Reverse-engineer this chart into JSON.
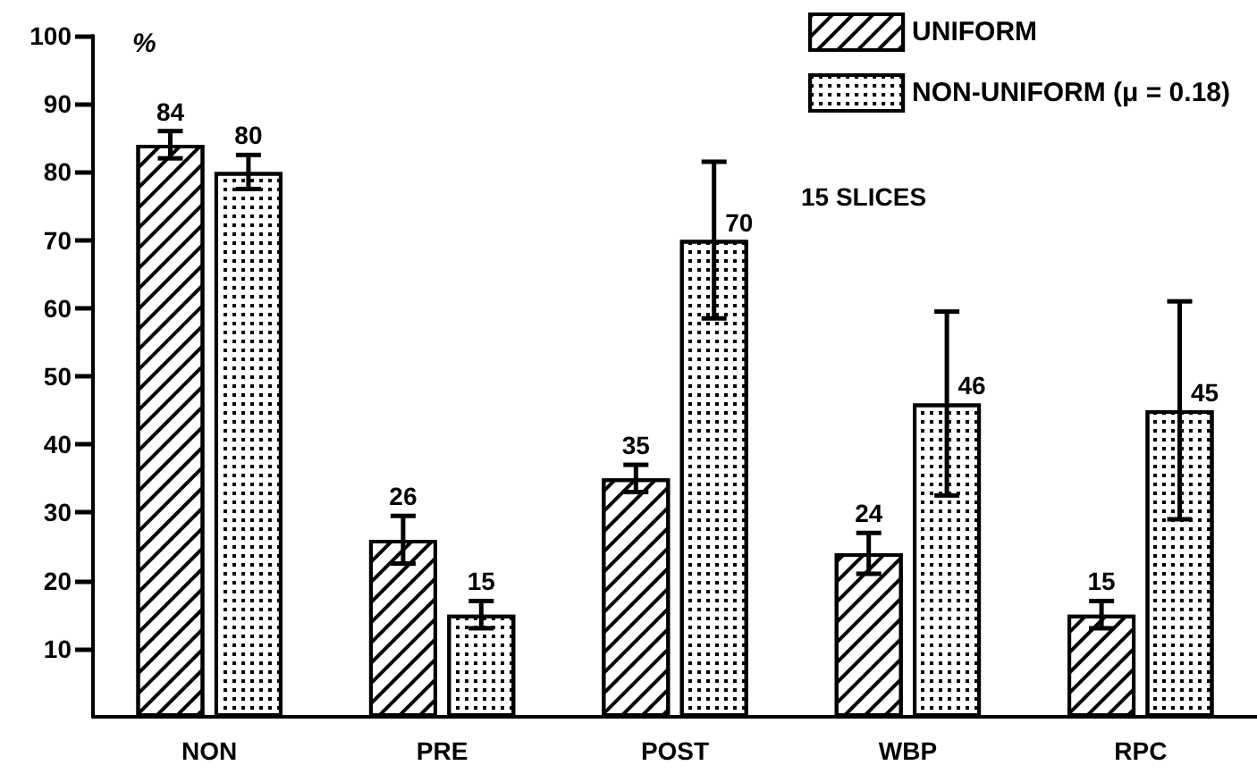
{
  "chart_data": {
    "type": "bar",
    "ylabel": "%",
    "categories": [
      "NON",
      "PRE",
      "POST",
      "WBP",
      "RPC"
    ],
    "series": [
      {
        "name": "UNIFORM",
        "color": "#ffffff",
        "values": [
          84,
          26,
          35,
          24,
          15
        ],
        "errors": [
          2,
          3.5,
          2,
          3,
          2
        ]
      },
      {
        "name": "NON-UNIFORM (μ = 0.18)",
        "color": "#ffffff",
        "values": [
          80,
          15,
          70,
          46,
          45
        ],
        "errors": [
          2.5,
          2,
          11.5,
          13.5,
          16
        ]
      }
    ],
    "ylim": [
      0,
      100
    ],
    "yticks": [
      10,
      20,
      30,
      40,
      50,
      60,
      70,
      80,
      90,
      100
    ],
    "data_labels": true,
    "grid": false,
    "legend": "top right",
    "annotations": [
      "15 SLICES"
    ]
  }
}
